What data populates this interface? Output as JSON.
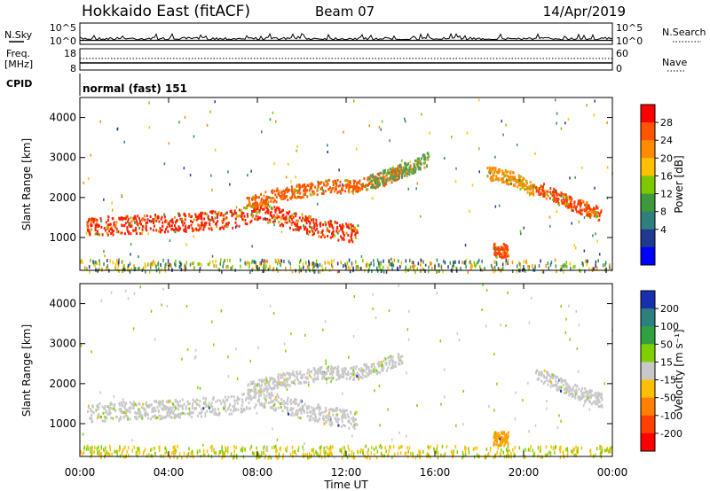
{
  "header": {
    "station": "Hokkaido East (fitACF)",
    "beam": "Beam 07",
    "date": "14/Apr/2019"
  },
  "strip": {
    "nsky_label": "N.Sky",
    "nsearch_label": "N.Search",
    "noise_ticks": [
      "10^5",
      "10^0"
    ],
    "freq_label_1": "Freq.",
    "freq_label_2": "[MHz]",
    "freq_ticks": [
      "18",
      "8"
    ],
    "nave_label": "Nave",
    "nave_ticks": [
      "60",
      "0"
    ],
    "cpid_label": "CPID",
    "cpid_value": "normal (fast) 151"
  },
  "axes": {
    "ylabel": "Slant Range [km]",
    "yticks": [
      1000,
      2000,
      3000,
      4000
    ],
    "ylim": [
      180,
      4500
    ],
    "xlabel": "Time UT",
    "xticks": [
      "00:00",
      "04:00",
      "08:00",
      "12:00",
      "16:00",
      "20:00",
      "00:00"
    ],
    "xlim_hours": [
      0,
      24
    ]
  },
  "colors": {
    "ground_scatter": "#c0c0c0",
    "velocity_gray": "#c8c8c8"
  },
  "chart_data": [
    {
      "type": "heatmap",
      "panel": "power",
      "colorbar_label": "Power [dB]",
      "colorbar_ticks": [
        "28",
        "24",
        "20",
        "16",
        "12",
        "8",
        "4"
      ],
      "colorbar_colors": [
        "#ff0000",
        "#ff5500",
        "#ff8c00",
        "#ffc000",
        "#7ec800",
        "#3c9a3c",
        "#2f7f7f",
        "#203890",
        "#0000ff"
      ],
      "series": [
        {
          "x": [
            0.3,
            4.5,
            7.0,
            8.0,
            9.5,
            11.0,
            12.5
          ],
          "y": [
            1300,
            1400,
            1500,
            1700,
            1450,
            1250,
            1100
          ],
          "color": "#ff2000"
        },
        {
          "x": [
            7.5,
            9.0,
            11.0,
            12.5,
            13.7,
            14.5
          ],
          "y": [
            1900,
            2100,
            2300,
            2300,
            2500,
            2700
          ],
          "color": "#ff5500"
        },
        {
          "x": [
            13.0,
            14.0,
            15.0,
            15.7
          ],
          "y": [
            2400,
            2600,
            2800,
            3000
          ],
          "color": "#5c9a50"
        },
        {
          "x": [
            20.5,
            22.0,
            23.5
          ],
          "y": [
            2300,
            1900,
            1600
          ],
          "color": "#ff3a00"
        },
        {
          "x": [
            18.3,
            19.5,
            20.5
          ],
          "y": [
            2650,
            2500,
            2200
          ],
          "color": "#ff8c00"
        },
        {
          "x": [
            18.6,
            19.3
          ],
          "y": [
            700,
            700
          ],
          "color": "#ff4500"
        }
      ]
    },
    {
      "type": "heatmap",
      "panel": "velocity",
      "colorbar_label": "Velocity [m s⁻¹]",
      "colorbar_ticks": [
        "200",
        "100",
        "50",
        "15",
        "-15",
        "-50",
        "-100",
        "-200"
      ],
      "colorbar_colors": [
        "#1830b0",
        "#2e7f7f",
        "#30a040",
        "#7fd000",
        "#c8c8c8",
        "#ffbf00",
        "#ff8000",
        "#ff4000",
        "#ff0000"
      ],
      "series": [
        {
          "x": [
            0.3,
            4.5,
            7.0,
            8.0,
            9.5,
            11.0,
            12.5
          ],
          "y": [
            1300,
            1400,
            1500,
            1700,
            1450,
            1250,
            1100
          ],
          "color": "#c8c8c8"
        },
        {
          "x": [
            7.5,
            9.0,
            11.0,
            12.5,
            13.7,
            14.5
          ],
          "y": [
            1900,
            2100,
            2300,
            2300,
            2500,
            2700
          ],
          "color": "#c8c8c8"
        },
        {
          "x": [
            20.5,
            22.0,
            23.5
          ],
          "y": [
            2300,
            1900,
            1600
          ],
          "color": "#c8c8c8"
        },
        {
          "x": [
            18.6,
            19.3
          ],
          "y": [
            650,
            650
          ],
          "color": "#ffa000"
        }
      ]
    }
  ]
}
